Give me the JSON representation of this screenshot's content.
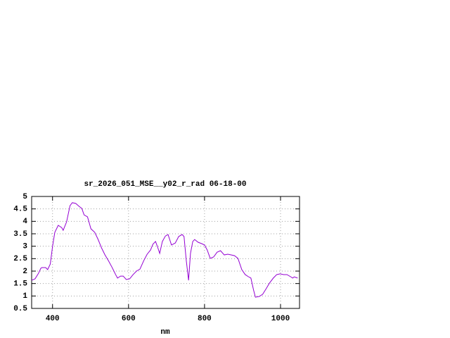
{
  "chart_data": {
    "type": "line",
    "title": "sr_2026_051_MSE__y02_r_rad 06-18-00",
    "x_label": "nm",
    "x": [
      345,
      354,
      363,
      369,
      372,
      382,
      387,
      394,
      400,
      406,
      415,
      424,
      428,
      437,
      446,
      452,
      461,
      470,
      477,
      483,
      492,
      501,
      511,
      520,
      529,
      538,
      547,
      557,
      566,
      571,
      579,
      586,
      594,
      603,
      612,
      621,
      630,
      640,
      649,
      658,
      664,
      671,
      676,
      682,
      689,
      697,
      704,
      713,
      723,
      732,
      741,
      746,
      752,
      758,
      763,
      769,
      774,
      783,
      793,
      800,
      807,
      815,
      824,
      833,
      842,
      852,
      861,
      870,
      879,
      888,
      898,
      907,
      916,
      922,
      929,
      934,
      944,
      953,
      962,
      971,
      981,
      990,
      999,
      1008,
      1017,
      1027,
      1032,
      1036,
      1045
    ],
    "series": [
      {
        "name": "sr_2026_051_MSE__y02_r_rad",
        "color": "#9400d3",
        "values": [
          1.63,
          1.69,
          1.91,
          2.11,
          2.14,
          2.14,
          2.06,
          2.28,
          2.99,
          3.56,
          3.84,
          3.75,
          3.64,
          3.98,
          4.63,
          4.75,
          4.72,
          4.6,
          4.52,
          4.26,
          4.18,
          3.7,
          3.56,
          3.27,
          2.93,
          2.65,
          2.42,
          2.14,
          1.86,
          1.72,
          1.8,
          1.8,
          1.66,
          1.69,
          1.86,
          2.0,
          2.08,
          2.42,
          2.68,
          2.85,
          3.08,
          3.19,
          2.99,
          2.71,
          3.19,
          3.41,
          3.47,
          3.05,
          3.13,
          3.39,
          3.47,
          3.39,
          2.42,
          1.63,
          2.71,
          3.19,
          3.27,
          3.16,
          3.1,
          3.05,
          2.85,
          2.51,
          2.57,
          2.76,
          2.82,
          2.65,
          2.68,
          2.65,
          2.62,
          2.51,
          2.06,
          1.86,
          1.77,
          1.72,
          1.24,
          0.95,
          0.98,
          1.07,
          1.29,
          1.52,
          1.72,
          1.86,
          1.89,
          1.86,
          1.86,
          1.77,
          1.72,
          1.77,
          1.72
        ]
      }
    ],
    "xlim": [
      345,
      1050
    ],
    "ylim": [
      0.5,
      5
    ],
    "xticks": [
      400,
      600,
      800,
      1000
    ],
    "yticks": [
      0.5,
      1,
      1.5,
      2,
      2.5,
      3,
      3.5,
      4,
      4.5,
      5
    ],
    "grid": true
  }
}
